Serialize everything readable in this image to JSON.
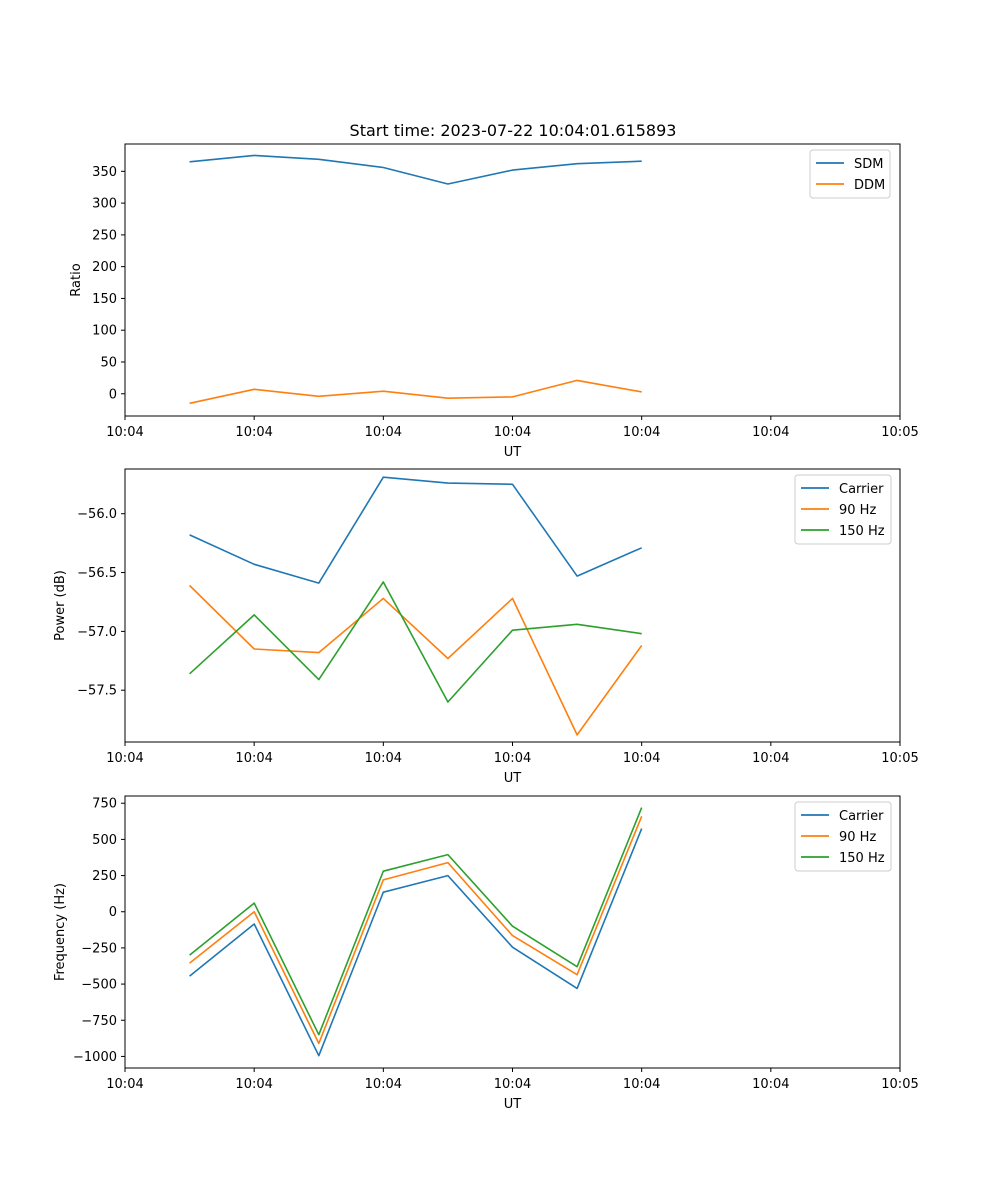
{
  "figure": {
    "title": "Start time: 2023-07-22 10:04:01.615893"
  },
  "chart_data": [
    {
      "type": "line",
      "title": "Start time: 2023-07-22 10:04:01.615893",
      "xlabel": "UT",
      "ylabel": "Ratio",
      "xlim": [
        0,
        12
      ],
      "ylim": [
        -35,
        393
      ],
      "x": [
        1,
        2,
        3,
        4,
        5,
        6,
        7,
        8
      ],
      "x_ticks": [
        0,
        2,
        4,
        6,
        8,
        10,
        12
      ],
      "x_tick_labels": [
        "10:04",
        "10:04",
        "10:04",
        "10:04",
        "10:04",
        "10:04",
        "10:05"
      ],
      "y_ticks": [
        0,
        50,
        100,
        150,
        200,
        250,
        300,
        350
      ],
      "y_tick_labels": [
        "0",
        "50",
        "100",
        "150",
        "200",
        "250",
        "300",
        "350"
      ],
      "grid": false,
      "legend": "top-right",
      "series": [
        {
          "name": "SDM",
          "color": "#1f77b4",
          "values": [
            365,
            375,
            369,
            356,
            330,
            352,
            362,
            366
          ]
        },
        {
          "name": "DDM",
          "color": "#ff7f0e",
          "values": [
            -15,
            7,
            -4,
            4,
            -7,
            -5,
            21,
            3
          ]
        }
      ]
    },
    {
      "type": "line",
      "title": "",
      "xlabel": "UT",
      "ylabel": "Power (dB)",
      "xlim": [
        0,
        12
      ],
      "ylim": [
        -57.94,
        -55.62
      ],
      "x": [
        1,
        2,
        3,
        4,
        5,
        6,
        7,
        8
      ],
      "x_ticks": [
        0,
        2,
        4,
        6,
        8,
        10,
        12
      ],
      "x_tick_labels": [
        "10:04",
        "10:04",
        "10:04",
        "10:04",
        "10:04",
        "10:04",
        "10:05"
      ],
      "y_ticks": [
        -57.5,
        -57.0,
        -56.5,
        -56.0
      ],
      "y_tick_labels": [
        "−57.5",
        "−57.0",
        "−56.5",
        "−56.0"
      ],
      "grid": false,
      "legend": "top-right",
      "series": [
        {
          "name": "Carrier",
          "color": "#1f77b4",
          "values": [
            -56.18,
            -56.43,
            -56.59,
            -55.69,
            -55.74,
            -55.75,
            -56.53,
            -56.29
          ]
        },
        {
          "name": "90 Hz",
          "color": "#ff7f0e",
          "values": [
            -56.61,
            -57.15,
            -57.18,
            -56.72,
            -57.23,
            -56.72,
            -57.88,
            -57.12
          ]
        },
        {
          "name": "150 Hz",
          "color": "#2ca02c",
          "values": [
            -57.36,
            -56.86,
            -57.41,
            -56.58,
            -57.6,
            -56.99,
            -56.94,
            -57.02
          ]
        }
      ]
    },
    {
      "type": "line",
      "title": "",
      "xlabel": "UT",
      "ylabel": "Frequency (Hz)",
      "xlim": [
        0,
        12
      ],
      "ylim": [
        -1080,
        800
      ],
      "x": [
        1,
        2,
        3,
        4,
        5,
        6,
        7,
        8
      ],
      "x_ticks": [
        0,
        2,
        4,
        6,
        8,
        10,
        12
      ],
      "x_tick_labels": [
        "10:04",
        "10:04",
        "10:04",
        "10:04",
        "10:04",
        "10:04",
        "10:05"
      ],
      "y_ticks": [
        -1000,
        -750,
        -500,
        -250,
        0,
        250,
        500,
        750
      ],
      "y_tick_labels": [
        "−1000",
        "−750",
        "−500",
        "−250",
        "0",
        "250",
        "500",
        "750"
      ],
      "grid": false,
      "legend": "top-right",
      "series": [
        {
          "name": "Carrier",
          "color": "#1f77b4",
          "values": [
            -445,
            -85,
            -995,
            135,
            250,
            -245,
            -530,
            575
          ]
        },
        {
          "name": "90 Hz",
          "color": "#ff7f0e",
          "values": [
            -355,
            0,
            -910,
            220,
            340,
            -165,
            -435,
            660
          ]
        },
        {
          "name": "150 Hz",
          "color": "#2ca02c",
          "values": [
            -300,
            60,
            -850,
            280,
            395,
            -100,
            -380,
            720
          ]
        }
      ]
    }
  ]
}
